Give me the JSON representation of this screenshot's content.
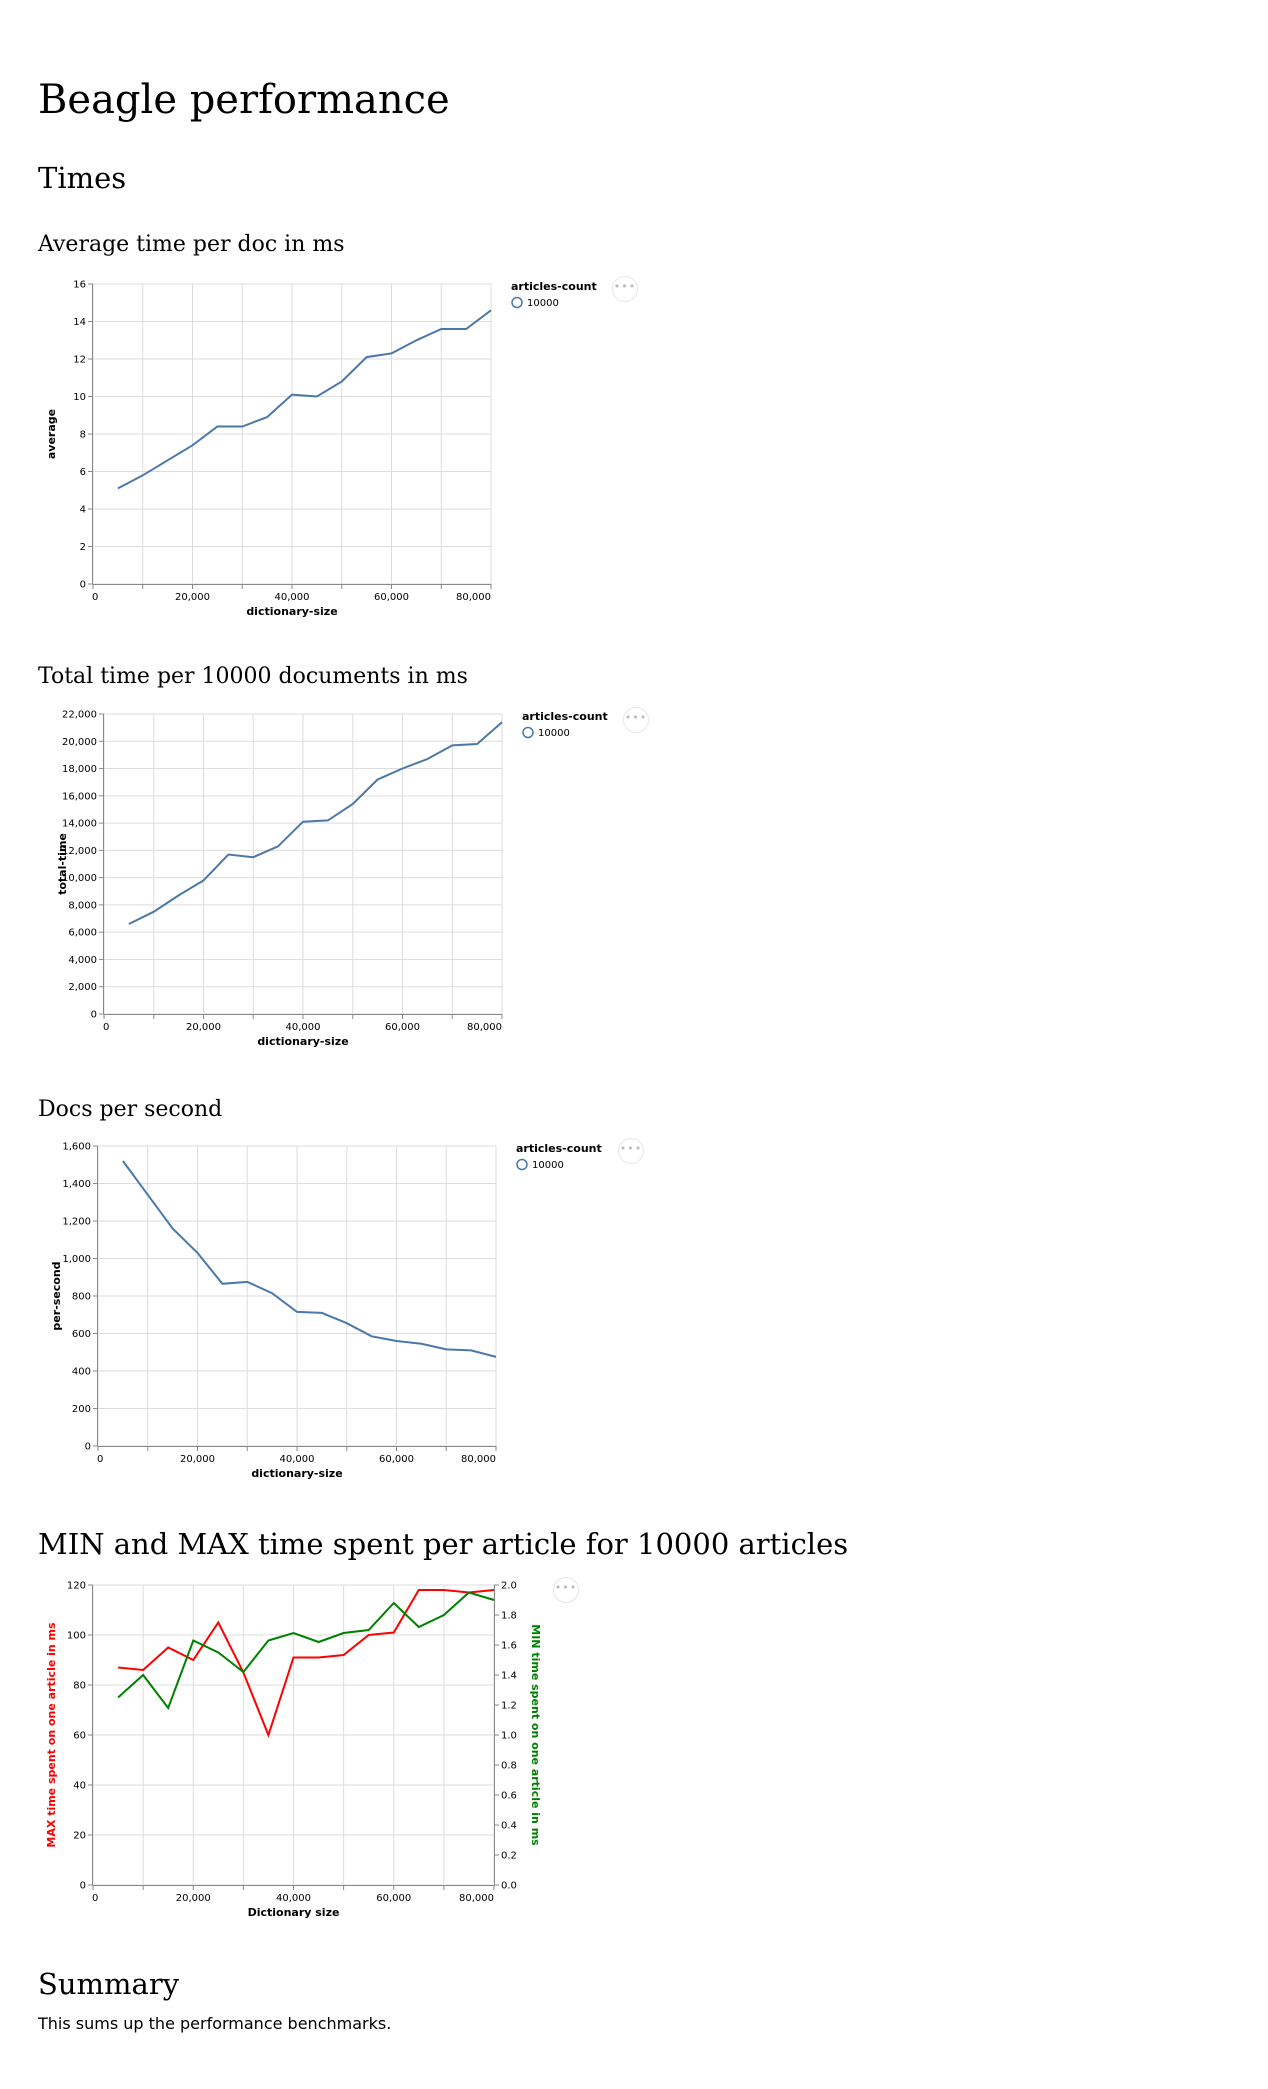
{
  "page": {
    "title": "Beagle performance",
    "section_times": "Times",
    "summary_heading": "Summary",
    "summary_text": "This sums up the performance benchmarks.",
    "actions_icon_name": "ellipsis-icon"
  },
  "chart_data": [
    {
      "type": "line",
      "title": "Average time per doc in ms",
      "xlabel": "dictionary-size",
      "ylabel": "average",
      "xlim": [
        0,
        80000
      ],
      "ylim": [
        0,
        16
      ],
      "x_ticks": [
        "0",
        "20,000",
        "40,000",
        "60,000",
        "80,000"
      ],
      "y_ticks": [
        "0",
        "2",
        "4",
        "6",
        "8",
        "10",
        "12",
        "14",
        "16"
      ],
      "grid": true,
      "legend_title": "articles-count",
      "legend_placement": "right",
      "series": [
        {
          "name": "10000",
          "color": "#4c78a8",
          "x": [
            5000,
            10000,
            15000,
            20000,
            25000,
            30000,
            35000,
            40000,
            45000,
            50000,
            55000,
            60000,
            65000,
            70000,
            75000,
            80000
          ],
          "values": [
            5.1,
            5.8,
            6.6,
            7.4,
            8.4,
            8.4,
            8.9,
            10.1,
            10.0,
            10.8,
            12.1,
            12.3,
            13.0,
            13.6,
            13.6,
            14.6
          ]
        }
      ]
    },
    {
      "type": "line",
      "title": "Total time per 10000 documents in ms",
      "xlabel": "dictionary-size",
      "ylabel": "total-time",
      "xlim": [
        0,
        80000
      ],
      "ylim": [
        0,
        22000
      ],
      "x_ticks": [
        "0",
        "20,000",
        "40,000",
        "60,000",
        "80,000"
      ],
      "y_ticks": [
        "0",
        "2,000",
        "4,000",
        "6,000",
        "8,000",
        "10,000",
        "12,000",
        "14,000",
        "16,000",
        "18,000",
        "20,000",
        "22,000"
      ],
      "grid": true,
      "legend_title": "articles-count",
      "legend_placement": "right",
      "series": [
        {
          "name": "10000",
          "color": "#4c78a8",
          "x": [
            5000,
            10000,
            15000,
            20000,
            25000,
            30000,
            35000,
            40000,
            45000,
            50000,
            55000,
            60000,
            65000,
            70000,
            75000,
            80000
          ],
          "values": [
            6600,
            7500,
            8700,
            9800,
            11700,
            11500,
            12300,
            14100,
            14200,
            15400,
            17200,
            18000,
            18700,
            19700,
            19800,
            21400
          ]
        }
      ]
    },
    {
      "type": "line",
      "title": "Docs per second",
      "xlabel": "dictionary-size",
      "ylabel": "per-second",
      "xlim": [
        0,
        80000
      ],
      "ylim": [
        0,
        1600
      ],
      "x_ticks": [
        "0",
        "20,000",
        "40,000",
        "60,000",
        "80,000"
      ],
      "y_ticks": [
        "0",
        "200",
        "400",
        "600",
        "800",
        "1,000",
        "1,200",
        "1,400",
        "1,600"
      ],
      "grid": true,
      "legend_title": "articles-count",
      "legend_placement": "right",
      "series": [
        {
          "name": "10000",
          "color": "#4c78a8",
          "x": [
            5000,
            10000,
            15000,
            20000,
            25000,
            30000,
            35000,
            40000,
            45000,
            50000,
            55000,
            60000,
            65000,
            70000,
            75000,
            80000
          ],
          "values": [
            1520,
            1340,
            1160,
            1030,
            865,
            875,
            815,
            715,
            710,
            655,
            585,
            560,
            545,
            515,
            510,
            475
          ]
        }
      ]
    },
    {
      "type": "line",
      "title": "MIN and MAX time spent per article for 10000 articles",
      "xlabel": "Dictionary size",
      "ylabel": "MAX time spent on one article in ms",
      "ylabel_right": "MIN time spent on one article in ms",
      "xlim": [
        0,
        80000
      ],
      "ylim": [
        0,
        120
      ],
      "ylim_right": [
        0,
        2.0
      ],
      "x_ticks": [
        "0",
        "20,000",
        "40,000",
        "60,000",
        "80,000"
      ],
      "y_ticks": [
        "0",
        "20",
        "40",
        "60",
        "80",
        "100",
        "120"
      ],
      "y_ticks_right": [
        "0.0",
        "0.2",
        "0.4",
        "0.6",
        "0.8",
        "1.0",
        "1.2",
        "1.4",
        "1.6",
        "1.8",
        "2.0"
      ],
      "grid": true,
      "series": [
        {
          "color": "#ff0000",
          "axis": "left",
          "x": [
            5000,
            10000,
            15000,
            20000,
            25000,
            30000,
            35000,
            40000,
            45000,
            50000,
            55000,
            60000,
            65000,
            70000,
            75000,
            80000
          ],
          "values": [
            87,
            86,
            95,
            90,
            105,
            85,
            60,
            91,
            91,
            92,
            100,
            101,
            118,
            118,
            117,
            118
          ]
        },
        {
          "color": "#008000",
          "axis": "right",
          "x": [
            5000,
            10000,
            15000,
            20000,
            25000,
            30000,
            35000,
            40000,
            45000,
            50000,
            55000,
            60000,
            65000,
            70000,
            75000,
            80000
          ],
          "values": [
            1.25,
            1.4,
            1.18,
            1.63,
            1.55,
            1.42,
            1.63,
            1.68,
            1.62,
            1.68,
            1.7,
            1.88,
            1.72,
            1.8,
            1.95,
            1.9
          ]
        }
      ]
    }
  ]
}
